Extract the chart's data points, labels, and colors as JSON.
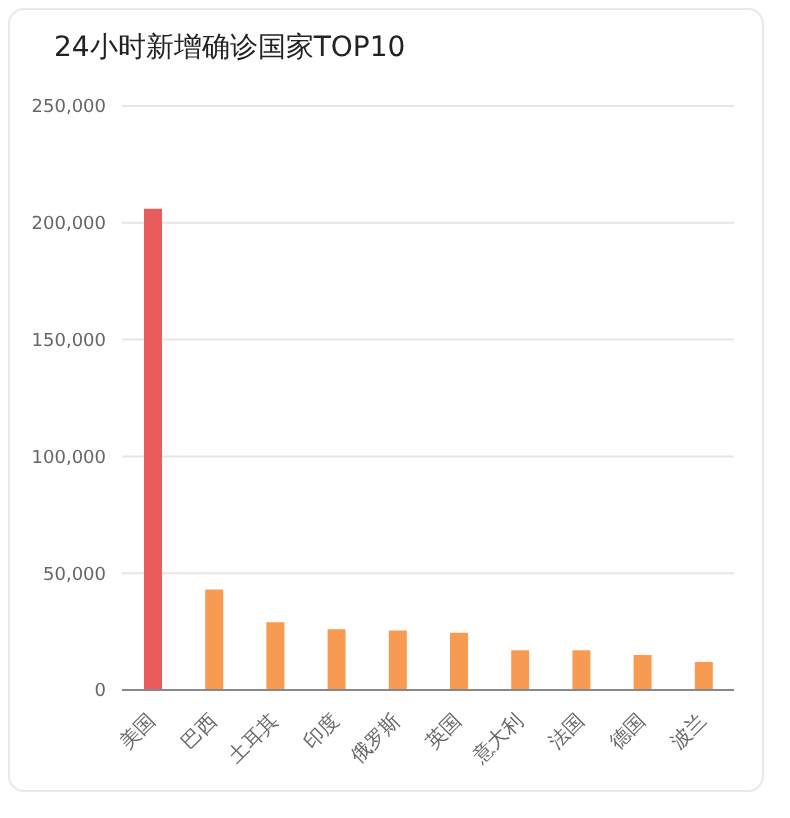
{
  "chart_data": {
    "type": "bar",
    "title": "24小时新增确诊国家TOP10",
    "categories": [
      "美国",
      "巴西",
      "土耳其",
      "印度",
      "俄罗斯",
      "英国",
      "意大利",
      "法国",
      "德国",
      "波兰"
    ],
    "values": [
      206000,
      43000,
      29000,
      26000,
      25500,
      24500,
      17000,
      17000,
      15000,
      12000
    ],
    "colors": [
      "#e85c5c",
      "#f79a52",
      "#f79a52",
      "#f79a52",
      "#f79a52",
      "#f79a52",
      "#f79a52",
      "#f79a52",
      "#f79a52",
      "#f79a52"
    ],
    "ylim": [
      0,
      250000
    ],
    "yticks": [
      0,
      {
        "value": 50000,
        "label": "50,000"
      },
      {
        "value": 100000,
        "label": "100,000"
      },
      {
        "value": 150000,
        "label": "150,000"
      },
      {
        "value": 200000,
        "label": "200,000"
      },
      {
        "value": 250000,
        "label": "250,000"
      }
    ],
    "grid": "y"
  }
}
